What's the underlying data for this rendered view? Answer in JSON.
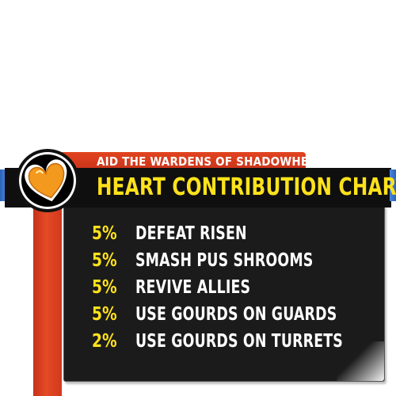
{
  "banner": {
    "subtitle": "AID THE WARDENS OF SHADOWHEART",
    "title": "HEART CONTRIBUTION CHART",
    "icon": "heart-icon"
  },
  "colors": {
    "title_yellow": "#ffe21b",
    "band_red": "#d8391c",
    "panel_black": "#1b1b1b",
    "edge_blue": "#3a74cc",
    "heart_orange": "#f39a1e"
  },
  "tasks": [
    {
      "percent": "5%",
      "label": "DEFEAT RISEN"
    },
    {
      "percent": "5%",
      "label": "SMASH PUS SHROOMS"
    },
    {
      "percent": "5%",
      "label": "REVIVE ALLIES"
    },
    {
      "percent": "5%",
      "label": "USE GOURDS ON GUARDS"
    },
    {
      "percent": "2%",
      "label": "USE GOURDS ON TURRETS"
    }
  ]
}
